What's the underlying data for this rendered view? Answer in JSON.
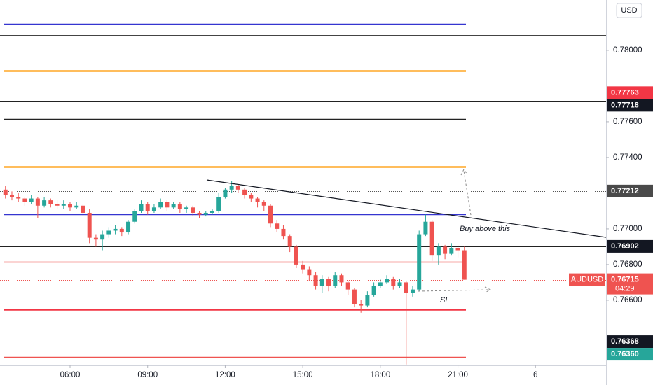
{
  "chart_data": {
    "type": "candlestick",
    "currency": "USD",
    "x": [
      3.5,
      3.75,
      4,
      4.25,
      4.5,
      4.75,
      5,
      5.25,
      5.5,
      5.75,
      6,
      6.25,
      6.5,
      6.75,
      7,
      7.25,
      7.5,
      7.75,
      8,
      8.25,
      8.5,
      8.75,
      9,
      9.25,
      9.5,
      9.75,
      10,
      10.25,
      10.5,
      10.75,
      11,
      11.25,
      11.5,
      11.75,
      12,
      12.25,
      12.5,
      12.75,
      13,
      13.25,
      13.5,
      13.75,
      14,
      14.25,
      14.5,
      14.75,
      15,
      15.25,
      15.5,
      15.75,
      16,
      16.25,
      16.5,
      16.75,
      17,
      17.25,
      17.5,
      17.75,
      18,
      18.25,
      18.5,
      18.75,
      19,
      19.25,
      19.5,
      19.75,
      20,
      20.25,
      20.5,
      20.75,
      21,
      21.25
    ],
    "open": [
      0.7722,
      0.7719,
      0.7718,
      0.7717,
      0.7715,
      0.7717,
      0.7713,
      0.7716,
      0.7714,
      0.7713,
      0.7714,
      0.7712,
      0.7713,
      0.7709,
      0.7695,
      0.7694,
      0.7697,
      0.7699,
      0.77,
      0.7698,
      0.7704,
      0.771,
      0.7714,
      0.771,
      0.7712,
      0.7715,
      0.7712,
      0.7714,
      0.7711,
      0.7712,
      0.7709,
      0.7708,
      0.7709,
      0.771,
      0.7718,
      0.7722,
      0.7724,
      0.7722,
      0.7719,
      0.7717,
      0.7715,
      0.7713,
      0.7703,
      0.77,
      0.7696,
      0.769,
      0.768,
      0.7677,
      0.7674,
      0.7668,
      0.7672,
      0.7668,
      0.7674,
      0.767,
      0.7666,
      0.7658,
      0.7657,
      0.7663,
      0.7668,
      0.767,
      0.7672,
      0.7668,
      0.767,
      0.7664,
      0.7666,
      0.7697,
      0.7704,
      0.7685,
      0.769,
      0.7686,
      0.7689,
      0.7688
    ],
    "high": [
      0.7724,
      0.7721,
      0.772,
      0.7718,
      0.7719,
      0.7718,
      0.7718,
      0.7717,
      0.7716,
      0.7716,
      0.7715,
      0.7715,
      0.7714,
      0.7711,
      0.7697,
      0.7699,
      0.7701,
      0.7702,
      0.7701,
      0.7705,
      0.7711,
      0.7716,
      0.7715,
      0.7714,
      0.7717,
      0.7716,
      0.7715,
      0.7715,
      0.7713,
      0.7713,
      0.771,
      0.771,
      0.7711,
      0.772,
      0.7723,
      0.7727,
      0.7725,
      0.7723,
      0.772,
      0.7718,
      0.7716,
      0.7714,
      0.7705,
      0.7702,
      0.7697,
      0.7691,
      0.7682,
      0.7679,
      0.7676,
      0.7674,
      0.7673,
      0.7676,
      0.7675,
      0.7671,
      0.7667,
      0.766,
      0.7665,
      0.767,
      0.7672,
      0.7674,
      0.7673,
      0.7672,
      0.7671,
      0.7668,
      0.7699,
      0.7708,
      0.7705,
      0.7692,
      0.7691,
      0.7692,
      0.7691,
      0.769
    ],
    "low": [
      0.7717,
      0.7716,
      0.7715,
      0.7713,
      0.7714,
      0.7706,
      0.7712,
      0.7712,
      0.7711,
      0.7711,
      0.771,
      0.7711,
      0.7707,
      0.7692,
      0.769,
      0.7688,
      0.7695,
      0.7697,
      0.7696,
      0.7697,
      0.7703,
      0.7709,
      0.7708,
      0.7709,
      0.7711,
      0.771,
      0.7711,
      0.7709,
      0.7709,
      0.7707,
      0.7706,
      0.7707,
      0.7708,
      0.7709,
      0.7717,
      0.772,
      0.772,
      0.7717,
      0.7715,
      0.7712,
      0.771,
      0.7701,
      0.7698,
      0.7694,
      0.7687,
      0.7678,
      0.7675,
      0.7671,
      0.7666,
      0.7664,
      0.7665,
      0.7667,
      0.7668,
      0.7663,
      0.7656,
      0.7653,
      0.7656,
      0.7662,
      0.7667,
      0.7669,
      0.7666,
      0.7667,
      0.7624,
      0.7662,
      0.7665,
      0.7696,
      0.7682,
      0.768,
      0.7683,
      0.7685,
      0.7684,
      0.76715
    ],
    "close": [
      0.7719,
      0.7718,
      0.7717,
      0.7715,
      0.7717,
      0.7713,
      0.7716,
      0.7714,
      0.7713,
      0.7714,
      0.7712,
      0.7713,
      0.7709,
      0.7695,
      0.7694,
      0.7697,
      0.7699,
      0.77,
      0.7698,
      0.7704,
      0.771,
      0.7714,
      0.771,
      0.7712,
      0.7715,
      0.7712,
      0.7714,
      0.7711,
      0.7712,
      0.7709,
      0.7708,
      0.7709,
      0.771,
      0.7718,
      0.7722,
      0.7724,
      0.7722,
      0.7719,
      0.7717,
      0.7715,
      0.7713,
      0.7703,
      0.77,
      0.7696,
      0.769,
      0.768,
      0.7677,
      0.7674,
      0.7668,
      0.7672,
      0.7668,
      0.7674,
      0.767,
      0.7666,
      0.7658,
      0.7657,
      0.7663,
      0.7668,
      0.767,
      0.7672,
      0.7668,
      0.767,
      0.7664,
      0.7666,
      0.7697,
      0.7704,
      0.7685,
      0.769,
      0.7686,
      0.7689,
      0.7688,
      0.76715
    ],
    "up_color": "#26a69a",
    "down_color": "#ef5350",
    "xlim": [
      3.29,
      26.73
    ],
    "xticks": [
      {
        "value": 6,
        "label": "06:00"
      },
      {
        "value": 9,
        "label": "09:00"
      },
      {
        "value": 12,
        "label": "12:00"
      },
      {
        "value": 15,
        "label": "15:00"
      },
      {
        "value": 18,
        "label": "18:00"
      },
      {
        "value": 21,
        "label": "21:00"
      },
      {
        "value": 24,
        "label": "6"
      }
    ],
    "ylim": [
      0.76235,
      0.78282
    ],
    "yticks": [
      {
        "value": 0.78,
        "label": "0.78000"
      },
      {
        "value": 0.776,
        "label": "0.77600"
      },
      {
        "value": 0.774,
        "label": "0.77400"
      },
      {
        "value": 0.77,
        "label": "0.77000"
      },
      {
        "value": 0.768,
        "label": "0.76800"
      },
      {
        "value": 0.766,
        "label": "0.76600"
      }
    ],
    "levels": [
      {
        "value": 0.78149,
        "color": "#3535d0",
        "style": "solid",
        "extended": false
      },
      {
        "value": 0.78086,
        "color": "#444444",
        "style": "solid",
        "extended": true
      },
      {
        "value": 0.77886,
        "color": "#ffa726",
        "style": "solid",
        "extended": false
      },
      {
        "value": 0.77718,
        "color": "#222222",
        "style": "solid",
        "extended": true
      },
      {
        "value": 0.77616,
        "color": "#222222",
        "style": "solid",
        "extended": false
      },
      {
        "value": 0.77545,
        "color": "#42a5f5",
        "style": "solid",
        "extended": true
      },
      {
        "value": 0.77349,
        "color": "#ffa726",
        "style": "solid",
        "extended": false
      },
      {
        "value": 0.77212,
        "color": "#555555",
        "style": "dotted",
        "extended": true
      },
      {
        "value": 0.77082,
        "color": "#3535d0",
        "style": "solid",
        "extended": false
      },
      {
        "value": 0.76902,
        "color": "#222222",
        "style": "solid",
        "extended": true
      },
      {
        "value": 0.76855,
        "color": "#444444",
        "style": "solid",
        "extended": true
      },
      {
        "value": 0.76816,
        "color": "#ef5350",
        "style": "solid",
        "extended": false
      },
      {
        "value": 0.76715,
        "color": "#ef5350",
        "style": "dotted",
        "extended": true
      },
      {
        "value": 0.76549,
        "color": "#f23645",
        "style": "solid",
        "extended": false
      },
      {
        "value": 0.76368,
        "color": "#222222",
        "style": "solid",
        "extended": true
      },
      {
        "value": 0.76282,
        "color": "#ef5350",
        "style": "solid",
        "extended": false
      }
    ],
    "price_labels": [
      {
        "value": 0.77763,
        "label": "0.77763",
        "color": "#f23645"
      },
      {
        "value": 0.77718,
        "label": "0.77718",
        "color": "#131722"
      },
      {
        "value": 0.77212,
        "label": "0.77212",
        "color": "#4a4a4a"
      },
      {
        "value": 0.76902,
        "label": "0.76902",
        "color": "#131722"
      },
      {
        "value": 0.76715,
        "label": "0.76715",
        "color": "#ef5350",
        "name": "AUDUSD",
        "countdown": "04:29"
      },
      {
        "value": 0.76368,
        "label": "0.76368",
        "color": "#131722"
      },
      {
        "value": 0.7636,
        "label": "0.76360",
        "color": "#26a69a"
      }
    ],
    "annotations": [
      "Buy above this",
      "SL"
    ]
  }
}
